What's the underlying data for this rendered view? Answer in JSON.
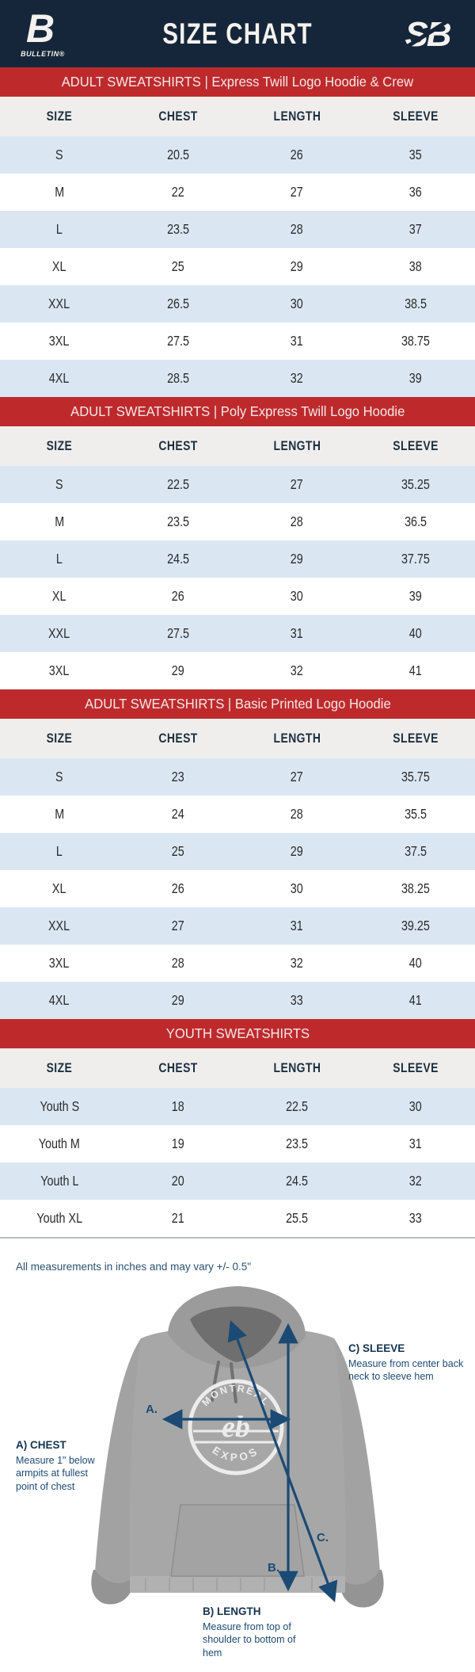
{
  "header": {
    "title": "SIZE CHART",
    "left_logo": {
      "mark": "B",
      "label": "BULLETIN®"
    },
    "right_logo": {
      "mark": "SB"
    }
  },
  "columns": [
    "SIZE",
    "CHEST",
    "LENGTH",
    "SLEEVE"
  ],
  "tables": [
    {
      "banner": "ADULT SWEATSHIRTS | Express Twill Logo Hoodie & Crew",
      "rows": [
        [
          "S",
          "20.5",
          "26",
          "35"
        ],
        [
          "M",
          "22",
          "27",
          "36"
        ],
        [
          "L",
          "23.5",
          "28",
          "37"
        ],
        [
          "XL",
          "25",
          "29",
          "38"
        ],
        [
          "XXL",
          "26.5",
          "30",
          "38.5"
        ],
        [
          "3XL",
          "27.5",
          "31",
          "38.75"
        ],
        [
          "4XL",
          "28.5",
          "32",
          "39"
        ]
      ]
    },
    {
      "banner": "ADULT SWEATSHIRTS | Poly Express Twill Logo Hoodie",
      "rows": [
        [
          "S",
          "22.5",
          "27",
          "35.25"
        ],
        [
          "M",
          "23.5",
          "28",
          "36.5"
        ],
        [
          "L",
          "24.5",
          "29",
          "37.75"
        ],
        [
          "XL",
          "26",
          "30",
          "39"
        ],
        [
          "XXL",
          "27.5",
          "31",
          "40"
        ],
        [
          "3XL",
          "29",
          "32",
          "41"
        ]
      ]
    },
    {
      "banner": "ADULT SWEATSHIRTS | Basic Printed Logo Hoodie",
      "rows": [
        [
          "S",
          "23",
          "27",
          "35.75"
        ],
        [
          "M",
          "24",
          "28",
          "35.5"
        ],
        [
          "L",
          "25",
          "29",
          "37.5"
        ],
        [
          "XL",
          "26",
          "30",
          "38.25"
        ],
        [
          "XXL",
          "27",
          "31",
          "39.25"
        ],
        [
          "3XL",
          "28",
          "32",
          "40"
        ],
        [
          "4XL",
          "29",
          "33",
          "41"
        ]
      ]
    },
    {
      "banner": "YOUTH SWEATSHIRTS",
      "rows": [
        [
          "Youth S",
          "18",
          "22.5",
          "30"
        ],
        [
          "Youth M",
          "19",
          "23.5",
          "31"
        ],
        [
          "Youth L",
          "20",
          "24.5",
          "32"
        ],
        [
          "Youth XL",
          "21",
          "25.5",
          "33"
        ]
      ]
    }
  ],
  "note": "All measurements in inches and may vary +/- 0.5\"",
  "diagram": {
    "chest_label": "A) CHEST",
    "chest_desc": "Measure 1\" below armpits at fullest point of chest",
    "length_label": "B) LENGTH",
    "length_desc": "Measure from top of shoulder to bottom of hem",
    "sleeve_label": "C) SLEEVE",
    "sleeve_desc": "Measure from center back neck to sleeve hem",
    "marker_a": "A.",
    "marker_b": "B.",
    "marker_c": "C.",
    "hoodie_logo_top": "MONTRÉAL",
    "hoodie_logo_bottom": "EXPOS",
    "hoodie_logo_center": "eb"
  },
  "colors": {
    "navy_header": "#16263A",
    "banner_red": "#BE2A2C",
    "row_blue": "#DAE7F3",
    "colhdr_gray": "#F0EEED",
    "arrow_navy": "#1B4A74",
    "hoodie_gray": "#A7A7A7"
  }
}
